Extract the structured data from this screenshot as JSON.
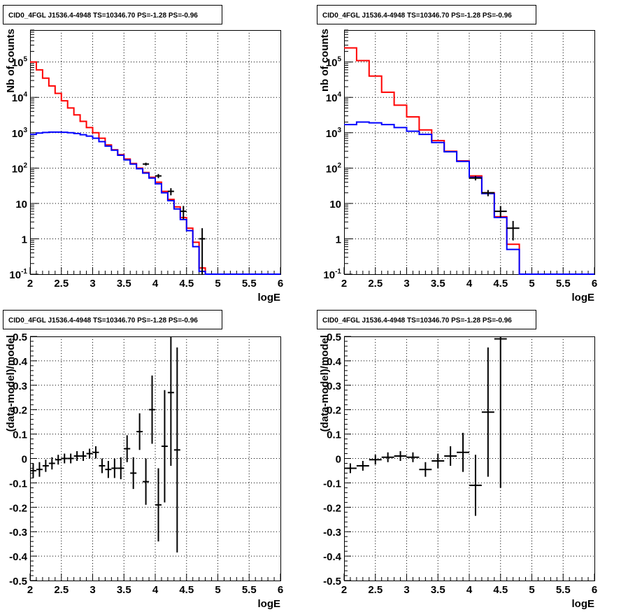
{
  "chart_data": [
    {
      "type": "line",
      "title": "CID0_4FGL J1536.4-4948 TS=10346.70 PS=-1.28 PS=-0.96",
      "xlabel": "logE",
      "ylabel": "Nb of counts",
      "xlim": [
        2,
        6
      ],
      "ylim": [
        0.1,
        800000
      ],
      "yscale": "log",
      "grid": true,
      "x_ticks": [
        "2",
        "2.5",
        "3",
        "3.5",
        "4",
        "4.5",
        "5",
        "5.5",
        "6"
      ],
      "y_ticks": [
        "10^-1",
        "1",
        "10",
        "10^2",
        "10^3",
        "10^4",
        "10^5"
      ],
      "bin_edges": [
        2.0,
        2.1,
        2.2,
        2.3,
        2.4,
        2.5,
        2.6,
        2.7,
        2.8,
        2.9,
        3.0,
        3.1,
        3.2,
        3.3,
        3.4,
        3.5,
        3.6,
        3.7,
        3.8,
        3.9,
        4.0,
        4.1,
        4.2,
        4.3,
        4.4,
        4.5,
        4.6,
        4.7,
        4.8,
        4.9,
        5.0,
        5.1,
        5.2,
        5.3,
        5.4,
        5.5,
        5.6,
        5.7,
        5.8,
        5.9,
        6.0
      ],
      "series": [
        {
          "color": "#ff0000",
          "values": [
            100000,
            60000,
            35000,
            21000,
            13000,
            8000,
            5000,
            3200,
            2100,
            1400,
            1000,
            700,
            450,
            330,
            240,
            180,
            135,
            100,
            75,
            55,
            40,
            22,
            13,
            8,
            4,
            2,
            0.8,
            0.15,
            0.1,
            0.1,
            0.1,
            0.1,
            0.1,
            0.1,
            0.1,
            0.1,
            0.1,
            0.1,
            0.1,
            0.1
          ]
        },
        {
          "color": "#0000ff",
          "values": [
            900,
            980,
            1020,
            1040,
            1040,
            1030,
            1000,
            950,
            880,
            800,
            700,
            560,
            420,
            320,
            230,
            170,
            130,
            96,
            72,
            52,
            36,
            20,
            12,
            7,
            3.5,
            1.7,
            0.6,
            0.12,
            0.1,
            0.1,
            0.1,
            0.1,
            0.1,
            0.1,
            0.1,
            0.1,
            0.1,
            0.1,
            0.1,
            0.1
          ]
        }
      ],
      "data_points": [
        {
          "x": 3.85,
          "y": 130,
          "ylo": 118,
          "yhi": 142
        },
        {
          "x": 4.05,
          "y": 60,
          "ylo": 52,
          "yhi": 68
        },
        {
          "x": 4.25,
          "y": 22,
          "ylo": 17,
          "yhi": 27
        },
        {
          "x": 4.45,
          "y": 6,
          "ylo": 3.6,
          "yhi": 8.5
        },
        {
          "x": 4.75,
          "y": 1,
          "ylo": 0.1,
          "yhi": 2
        }
      ]
    },
    {
      "type": "line",
      "title": "CID0_4FGL J1536.4-4948 TS=10346.70 PS=-1.28 PS=-0.96",
      "xlabel": "logE",
      "ylabel": "nb of counts",
      "xlim": [
        2,
        6
      ],
      "ylim": [
        0.1,
        800000
      ],
      "yscale": "log",
      "grid": true,
      "x_ticks": [
        "2",
        "2.5",
        "3",
        "3.5",
        "4",
        "4.5",
        "5",
        "5.5",
        "6"
      ],
      "y_ticks": [
        "10^-1",
        "1",
        "10",
        "10^2",
        "10^3",
        "10^4",
        "10^5"
      ],
      "bin_edges": [
        2.0,
        2.2,
        2.4,
        2.6,
        2.8,
        3.0,
        3.2,
        3.4,
        3.6,
        3.8,
        4.0,
        4.2,
        4.4,
        4.6,
        4.8,
        5.0,
        5.2,
        5.4,
        5.6,
        5.8,
        6.0
      ],
      "series": [
        {
          "color": "#ff0000",
          "values": [
            250000,
            110000,
            40000,
            14000,
            6000,
            2800,
            1200,
            600,
            300,
            160,
            60,
            20,
            4.2,
            0.7,
            0.1,
            0.1,
            0.1,
            0.1,
            0.1,
            0.1
          ]
        },
        {
          "color": "#0000ff",
          "values": [
            1700,
            2000,
            1900,
            1700,
            1400,
            1100,
            900,
            530,
            290,
            155,
            55,
            19,
            4,
            0.5,
            0.1,
            0.1,
            0.1,
            0.1,
            0.1,
            0.1
          ]
        }
      ],
      "data_points": [
        {
          "x": 4.1,
          "y": 52,
          "ylo": 45,
          "yhi": 60
        },
        {
          "x": 4.3,
          "y": 20,
          "ylo": 16,
          "yhi": 24
        },
        {
          "x": 4.5,
          "y": 6,
          "ylo": 4,
          "yhi": 8.5
        },
        {
          "x": 4.7,
          "y": 2,
          "ylo": 0.9,
          "yhi": 3.2
        }
      ]
    },
    {
      "type": "scatter",
      "title": "CID0_4FGL J1536.4-4948 TS=10346.70 PS=-1.28 PS=-0.96",
      "xlabel": "logE",
      "ylabel": "(data-model)/model",
      "xlim": [
        2,
        6
      ],
      "ylim": [
        -0.5,
        0.5
      ],
      "grid": true,
      "x_ticks": [
        "2",
        "2.5",
        "3",
        "3.5",
        "4",
        "4.5",
        "5",
        "5.5",
        "6"
      ],
      "y_ticks": [
        "-0.5",
        "-0.4",
        "-0.3",
        "-0.2",
        "-0.1",
        "0",
        "0.1",
        "0.2",
        "0.3",
        "0.4",
        "0.5"
      ],
      "xerr": 0.05,
      "points": [
        {
          "x": 2.05,
          "y": -0.05,
          "err": 0.03
        },
        {
          "x": 2.15,
          "y": -0.045,
          "err": 0.03
        },
        {
          "x": 2.25,
          "y": -0.03,
          "err": 0.025
        },
        {
          "x": 2.35,
          "y": -0.02,
          "err": 0.025
        },
        {
          "x": 2.45,
          "y": -0.005,
          "err": 0.02
        },
        {
          "x": 2.55,
          "y": 0.0,
          "err": 0.02
        },
        {
          "x": 2.65,
          "y": 0.0,
          "err": 0.02
        },
        {
          "x": 2.75,
          "y": 0.01,
          "err": 0.02
        },
        {
          "x": 2.85,
          "y": 0.01,
          "err": 0.02
        },
        {
          "x": 2.95,
          "y": 0.02,
          "err": 0.02
        },
        {
          "x": 3.05,
          "y": 0.025,
          "err": 0.025
        },
        {
          "x": 3.15,
          "y": -0.03,
          "err": 0.03
        },
        {
          "x": 3.25,
          "y": -0.045,
          "err": 0.035
        },
        {
          "x": 3.35,
          "y": -0.04,
          "err": 0.04
        },
        {
          "x": 3.45,
          "y": -0.04,
          "err": 0.045
        },
        {
          "x": 3.55,
          "y": 0.04,
          "err": 0.055
        },
        {
          "x": 3.65,
          "y": -0.06,
          "err": 0.065
        },
        {
          "x": 3.75,
          "y": 0.11,
          "err": 0.075
        },
        {
          "x": 3.85,
          "y": -0.095,
          "err": 0.095
        },
        {
          "x": 3.95,
          "y": 0.2,
          "err": 0.14
        },
        {
          "x": 4.05,
          "y": -0.19,
          "err": 0.15
        },
        {
          "x": 4.15,
          "y": 0.05,
          "err": 0.23
        },
        {
          "x": 4.25,
          "y": 0.27,
          "err": 0.3
        },
        {
          "x": 4.35,
          "y": 0.035,
          "err": 0.42
        }
      ]
    },
    {
      "type": "scatter",
      "title": "CID0_4FGL J1536.4-4948 TS=10346.70 PS=-1.28 PS=-0.96",
      "xlabel": "logE",
      "ylabel": "(data-model)/model",
      "xlim": [
        2,
        6
      ],
      "ylim": [
        -0.5,
        0.5
      ],
      "grid": true,
      "x_ticks": [
        "2",
        "2.5",
        "3",
        "3.5",
        "4",
        "4.5",
        "5",
        "5.5",
        "6"
      ],
      "y_ticks": [
        "-0.5",
        "-0.4",
        "-0.3",
        "-0.2",
        "-0.1",
        "0",
        "0.1",
        "0.2",
        "0.3",
        "0.4",
        "0.5"
      ],
      "xerr": 0.1,
      "points": [
        {
          "x": 2.1,
          "y": -0.04,
          "err": 0.02
        },
        {
          "x": 2.3,
          "y": -0.03,
          "err": 0.02
        },
        {
          "x": 2.5,
          "y": -0.005,
          "err": 0.02
        },
        {
          "x": 2.7,
          "y": 0.005,
          "err": 0.02
        },
        {
          "x": 2.9,
          "y": 0.01,
          "err": 0.02
        },
        {
          "x": 3.1,
          "y": 0.005,
          "err": 0.02
        },
        {
          "x": 3.3,
          "y": -0.045,
          "err": 0.03
        },
        {
          "x": 3.5,
          "y": -0.01,
          "err": 0.03
        },
        {
          "x": 3.7,
          "y": 0.01,
          "err": 0.04
        },
        {
          "x": 3.9,
          "y": 0.025,
          "err": 0.08
        },
        {
          "x": 4.1,
          "y": -0.11,
          "err": 0.125
        },
        {
          "x": 4.3,
          "y": 0.19,
          "err": 0.265
        },
        {
          "x": 4.5,
          "y": 0.49,
          "err": 0.61
        }
      ]
    }
  ]
}
